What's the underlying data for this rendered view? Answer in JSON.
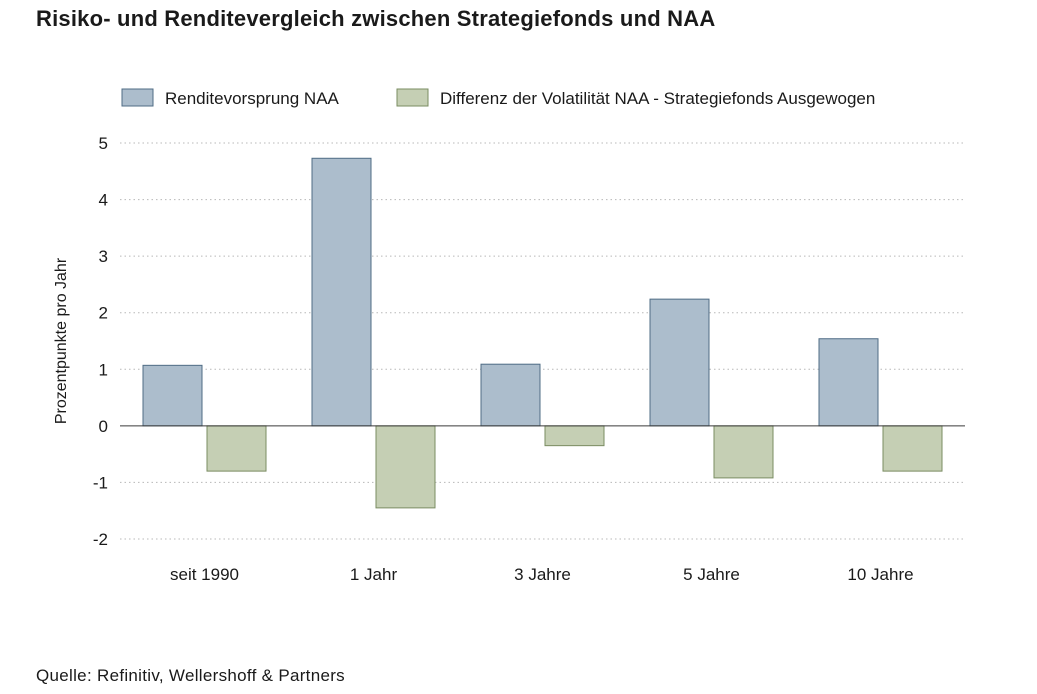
{
  "chart_data": {
    "type": "bar",
    "title": "Risiko- und Renditevergleich zwischen Strategiefonds und NAA",
    "xlabel": "",
    "ylabel": "Prozentpunkte pro Jahr",
    "ylim": [
      -2,
      5
    ],
    "yticks": [
      5,
      4,
      3,
      2,
      1,
      0,
      -1,
      -2
    ],
    "grid": true,
    "legend_position": "top",
    "categories": [
      "seit 1990",
      "1 Jahr",
      "3 Jahre",
      "5 Jahre",
      "10 Jahre"
    ],
    "series": [
      {
        "name": "Renditevorsprung NAA",
        "color": "#acbdcc",
        "stroke": "#4f6c85",
        "values": [
          1.07,
          4.73,
          1.09,
          2.24,
          1.54
        ]
      },
      {
        "name": "Differenz der Volatilität NAA - Strategiefonds Ausgewogen",
        "color": "#c5cfb4",
        "stroke": "#7a8c62",
        "values": [
          -0.8,
          -1.45,
          -0.35,
          -0.92,
          -0.8
        ]
      }
    ]
  },
  "footer": {
    "source": "Quelle: Refinitiv, Wellershoff & Partners"
  }
}
